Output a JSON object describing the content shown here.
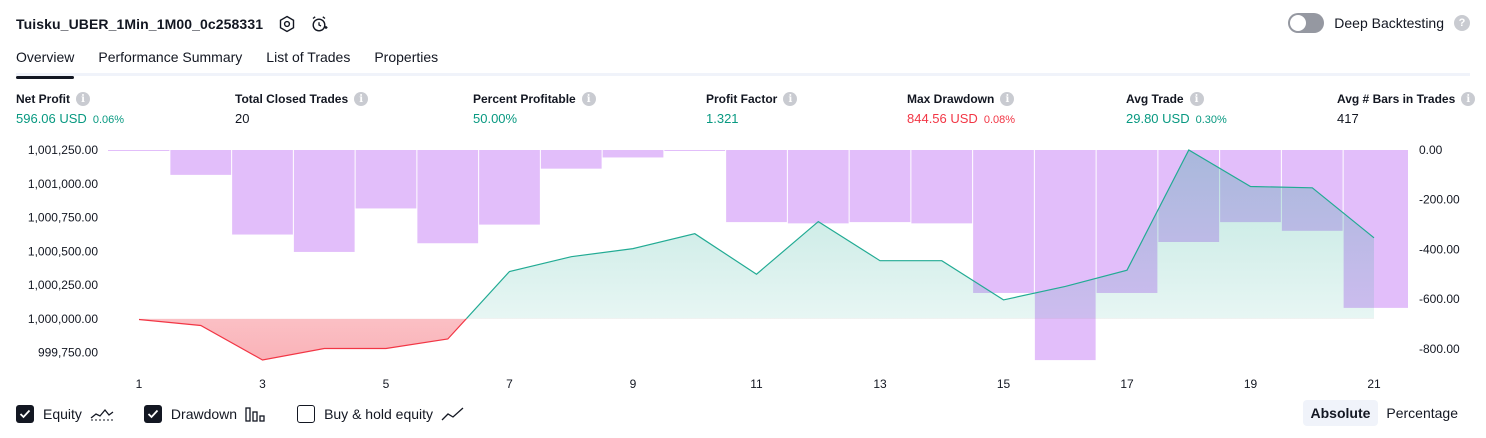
{
  "header": {
    "strategy_name": "Tuisku_UBER_1Min_1M00_0c258331",
    "deep_backtesting_label": "Deep Backtesting",
    "deep_backtesting_enabled": false
  },
  "tabs": [
    {
      "label": "Overview",
      "active": true
    },
    {
      "label": "Performance Summary",
      "active": false
    },
    {
      "label": "List of Trades",
      "active": false
    },
    {
      "label": "Properties",
      "active": false
    }
  ],
  "metrics": [
    {
      "label": "Net Profit",
      "value": "596.06 USD",
      "pct": "0.06%",
      "tone": "pos"
    },
    {
      "label": "Total Closed Trades",
      "value": "20",
      "pct": "",
      "tone": "neutral"
    },
    {
      "label": "Percent Profitable",
      "value": "50.00%",
      "pct": "",
      "tone": "pos"
    },
    {
      "label": "Profit Factor",
      "value": "1.321",
      "pct": "",
      "tone": "pos"
    },
    {
      "label": "Max Drawdown",
      "value": "844.56 USD",
      "pct": "0.08%",
      "tone": "neg"
    },
    {
      "label": "Avg Trade",
      "value": "29.80 USD",
      "pct": "0.30%",
      "tone": "pos"
    },
    {
      "label": "Avg # Bars in Trades",
      "value": "417",
      "pct": "",
      "tone": "neutral"
    }
  ],
  "chart_data": {
    "type": "line",
    "x": [
      1,
      2,
      3,
      4,
      5,
      6,
      7,
      8,
      9,
      10,
      11,
      12,
      13,
      14,
      15,
      16,
      17,
      18,
      19,
      20,
      21
    ],
    "x_tick_labels": [
      "1",
      "3",
      "5",
      "7",
      "9",
      "11",
      "13",
      "15",
      "17",
      "19",
      "21"
    ],
    "left_axis": {
      "tick_labels": [
        "1,001,250.00",
        "1,001,000.00",
        "1,000,750.00",
        "1,000,500.00",
        "1,000,250.00",
        "1,000,000.00",
        "999,750.00"
      ],
      "ylim": [
        999680,
        1001250
      ]
    },
    "right_axis": {
      "tick_labels": [
        "0.00",
        "-200.00",
        "-400.00",
        "-600.00",
        "-800.00"
      ],
      "ylim": [
        -844.56,
        0
      ]
    },
    "baseline": 1000000,
    "series": [
      {
        "name": "Equity",
        "color": "#22ab94",
        "negative_color": "#f23645",
        "axis": "left",
        "values": [
          999995,
          999950,
          999695,
          999780,
          999780,
          999850,
          1000350,
          1000460,
          1000520,
          1000630,
          1000330,
          1000720,
          1000430,
          1000430,
          1000140,
          1000240,
          1000360,
          1001250,
          1000980,
          1000970,
          1000600
        ]
      },
      {
        "name": "Drawdown",
        "color": "#ce93f6",
        "type": "bar",
        "axis": "right",
        "values": [
          -3,
          -100,
          -340,
          -410,
          -235,
          -375,
          -300,
          -75,
          -30,
          -2,
          -290,
          -295,
          -290,
          -295,
          -575,
          -845,
          -575,
          -370,
          -290,
          -325,
          -635
        ]
      }
    ],
    "legend": [
      "Equity",
      "Drawdown",
      "Buy & hold equity"
    ]
  },
  "legend": [
    {
      "label": "Equity",
      "checked": true,
      "icon": "equity-line-icon"
    },
    {
      "label": "Drawdown",
      "checked": true,
      "icon": "drawdown-bars-icon"
    },
    {
      "label": "Buy & hold equity",
      "checked": false,
      "icon": "buy-hold-line-icon"
    }
  ],
  "mode": {
    "absolute_label": "Absolute",
    "percentage_label": "Percentage",
    "selected": "Absolute"
  }
}
